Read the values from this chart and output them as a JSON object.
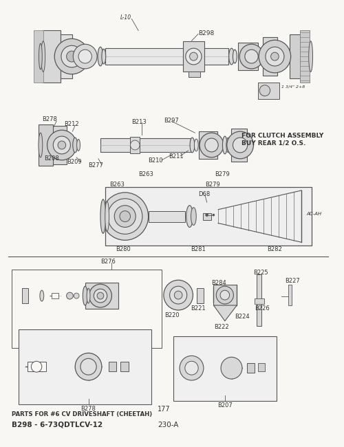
{
  "bg_color": "#f8f7f4",
  "line_color": "#555555",
  "text_color": "#333333",
  "dark_color": "#444444",
  "bottom_left_text": "B298 - 6-73QDTLCV-12",
  "bottom_center_text": "230-A",
  "parts_label": "PARTS FOR #6 CV DRIVESHAFT (CHEETAH)",
  "page_num": "177",
  "figsize": [
    5.0,
    6.5
  ],
  "dpi": 100
}
